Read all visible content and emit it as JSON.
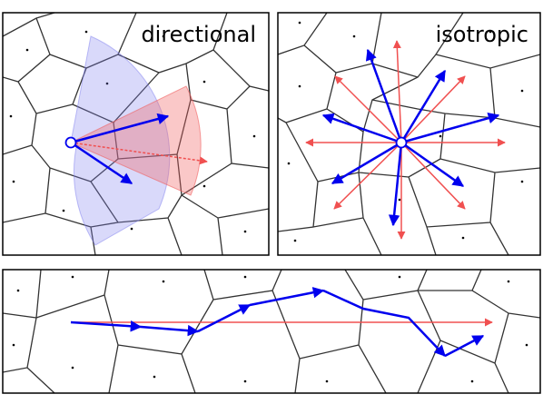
{
  "panels": [
    {
      "label": "directional"
    },
    {
      "label": "isotropic"
    }
  ]
}
